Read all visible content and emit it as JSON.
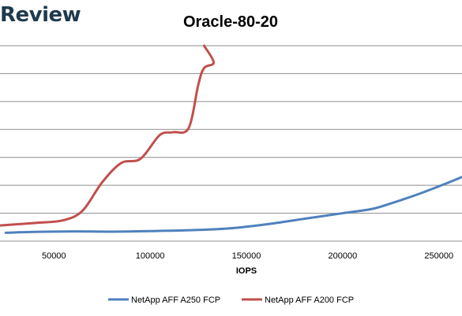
{
  "brand": {
    "text": "Review"
  },
  "chart_data": {
    "type": "line",
    "title": "Oracle-80-20",
    "xlabel": "IOPS",
    "ylabel": "",
    "xlim": [
      22000,
      262000
    ],
    "ylim": [
      0,
      7
    ],
    "x_ticks": [
      50000,
      100000,
      150000,
      200000,
      250000
    ],
    "grid": true,
    "legend_position": "bottom",
    "series": [
      {
        "name": "NetApp AFF A250 FCP",
        "color": "#4f81bd",
        "x": [
          25000,
          40000,
          60000,
          80000,
          100000,
          120000,
          140000,
          160000,
          180000,
          200000,
          215000,
          225000,
          240000,
          255000,
          262000
        ],
        "y": [
          0.3,
          0.33,
          0.35,
          0.34,
          0.36,
          0.39,
          0.45,
          0.6,
          0.8,
          1.0,
          1.15,
          1.35,
          1.7,
          2.1,
          2.3
        ]
      },
      {
        "name": "NetApp AFF A200 FCP",
        "color": "#c0504d",
        "x": [
          20000,
          40000,
          55000,
          65000,
          75000,
          85000,
          95000,
          105000,
          112000,
          120000,
          125000,
          128000,
          133000,
          128000
        ],
        "y": [
          0.55,
          0.65,
          0.75,
          1.1,
          2.1,
          2.8,
          2.95,
          3.8,
          3.9,
          4.05,
          5.6,
          6.2,
          6.4,
          7.0
        ]
      }
    ]
  }
}
